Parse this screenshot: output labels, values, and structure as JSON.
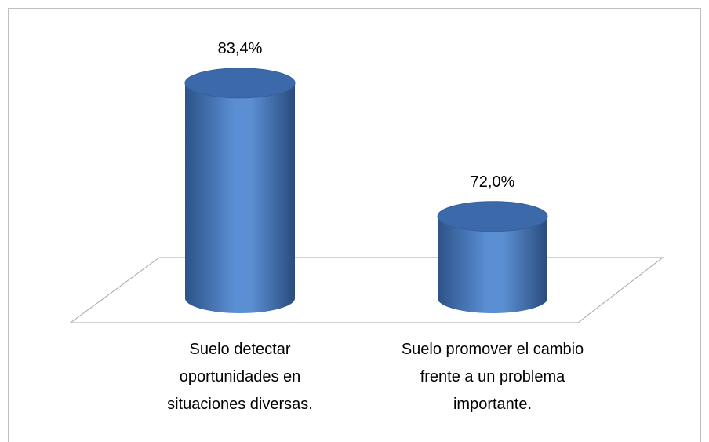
{
  "chart_data": {
    "type": "cylinder",
    "categories": [
      "Suelo detectar oportunidades en situaciones diversas.",
      "Suelo promover el cambio frente a un problema importante."
    ],
    "values": [
      83.4,
      72.0
    ],
    "value_labels": [
      "83,4%",
      "72,0%"
    ],
    "color": "#4f81bd",
    "ylim": [
      65,
      85
    ]
  }
}
